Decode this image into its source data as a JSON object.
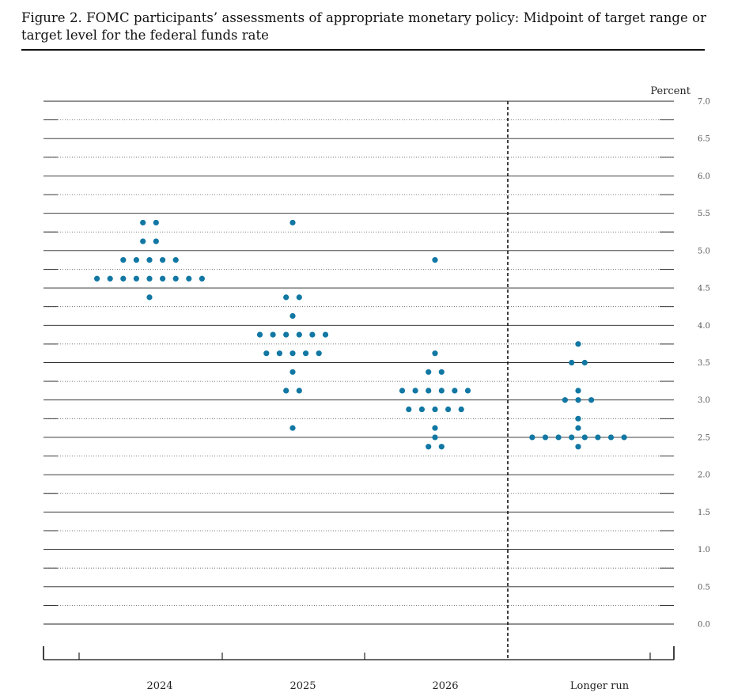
{
  "figure": {
    "title": "Figure 2.  FOMC participants’ assessments of appropriate monetary policy:  Midpoint of target range or target level for the federal funds rate"
  },
  "chart_data": {
    "type": "scatter",
    "title": "Figure 2.  FOMC participants’ assessments of appropriate monetary policy:  Midpoint of target range or target level for the federal funds rate",
    "ylabel": "Percent",
    "ylim": [
      0.0,
      7.0
    ],
    "y_ticks": [
      "0.0",
      "0.5",
      "1.0",
      "1.5",
      "2.0",
      "2.5",
      "3.0",
      "3.5",
      "4.0",
      "4.5",
      "5.0",
      "5.5",
      "6.0",
      "6.5",
      "7.0"
    ],
    "categories": [
      "2024",
      "2025",
      "2026",
      "Longer run"
    ],
    "dot_color": "#1177a3",
    "grid": "full lines at whole and half percents, dotted lines at quarter percents",
    "separator": "dashed vertical line before Longer run",
    "points": [
      {
        "category": "2024",
        "rows": [
          {
            "y": 5.375,
            "n": 2
          },
          {
            "y": 5.125,
            "n": 2
          },
          {
            "y": 4.875,
            "n": 5
          },
          {
            "y": 4.625,
            "n": 9
          },
          {
            "y": 4.375,
            "n": 1
          }
        ]
      },
      {
        "category": "2025",
        "rows": [
          {
            "y": 5.375,
            "n": 1
          },
          {
            "y": 4.375,
            "n": 2
          },
          {
            "y": 4.125,
            "n": 1
          },
          {
            "y": 3.875,
            "n": 6
          },
          {
            "y": 3.625,
            "n": 5
          },
          {
            "y": 3.375,
            "n": 1
          },
          {
            "y": 3.125,
            "n": 2
          },
          {
            "y": 2.625,
            "n": 1
          }
        ]
      },
      {
        "category": "2026",
        "rows": [
          {
            "y": 4.875,
            "n": 1
          },
          {
            "y": 3.625,
            "n": 1
          },
          {
            "y": 3.375,
            "n": 2
          },
          {
            "y": 3.125,
            "n": 6
          },
          {
            "y": 2.875,
            "n": 5
          },
          {
            "y": 2.625,
            "n": 1
          },
          {
            "y": 2.5,
            "n": 1
          },
          {
            "y": 2.375,
            "n": 2
          }
        ]
      },
      {
        "category": "Longer run",
        "rows": [
          {
            "y": 3.75,
            "n": 1
          },
          {
            "y": 3.5,
            "n": 2
          },
          {
            "y": 3.125,
            "n": 1
          },
          {
            "y": 3.0,
            "n": 3
          },
          {
            "y": 2.75,
            "n": 1
          },
          {
            "y": 2.625,
            "n": 1
          },
          {
            "y": 2.5,
            "n": 8
          },
          {
            "y": 2.375,
            "n": 1
          }
        ]
      }
    ]
  }
}
